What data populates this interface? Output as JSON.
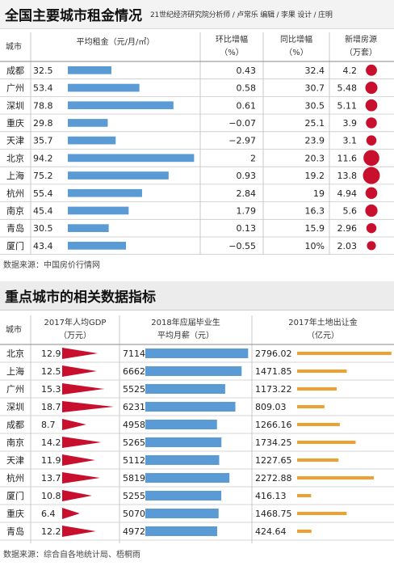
{
  "top": {
    "title": "全国主要城市租金情况",
    "credits": "21世纪经济研究院分析师 / 卢常乐  编辑 / 李果  设计 / 庄明",
    "source": "数据来源：中国房价行情网"
  },
  "bottom": {
    "title": "重点城市的相关数据指标",
    "source": "数据来源：综合自各地统计局、梧桐雨"
  },
  "colors": {
    "bar_blue": "#5b9bd5",
    "dot_red": "#c8102e",
    "tri_red": "#c8102e",
    "bar_orange": "#f0a030",
    "grid": "#c8c8c8"
  },
  "chart_data": [
    {
      "type": "table",
      "title": "全国主要城市租金情况",
      "headers": {
        "city": "城市",
        "rent": "平均租金（元/月/㎡）",
        "mom_line1": "环比增幅",
        "mom_line2": "（%）",
        "yoy_line1": "同比增幅",
        "yoy_line2": "（%）",
        "supply_line1": "新增房源",
        "supply_line2": "（万套）"
      },
      "rent_max": 100,
      "rows": [
        {
          "city": "成都",
          "rent": "32.5",
          "mom": "0.43",
          "yoy": "32.4",
          "supply": "4.2"
        },
        {
          "city": "广州",
          "rent": "53.4",
          "mom": "0.58",
          "yoy": "30.7",
          "supply": "5.48"
        },
        {
          "city": "深圳",
          "rent": "78.8",
          "mom": "0.61",
          "yoy": "30.5",
          "supply": "5.11"
        },
        {
          "city": "重庆",
          "rent": "29.8",
          "mom": "−0.07",
          "yoy": "25.1",
          "supply": "3.9"
        },
        {
          "city": "天津",
          "rent": "35.7",
          "mom": "−2.97",
          "yoy": "23.9",
          "supply": "3.1"
        },
        {
          "city": "北京",
          "rent": "94.2",
          "mom": "2",
          "yoy": "20.3",
          "supply": "11.6"
        },
        {
          "city": "上海",
          "rent": "75.2",
          "mom": "0.93",
          "yoy": "19.2",
          "supply": "13.8"
        },
        {
          "city": "杭州",
          "rent": "55.4",
          "mom": "2.84",
          "yoy": "19",
          "supply": "4.94"
        },
        {
          "city": "南京",
          "rent": "45.4",
          "mom": "1.79",
          "yoy": "16.3",
          "supply": "5.6"
        },
        {
          "city": "青岛",
          "rent": "30.5",
          "mom": "0.13",
          "yoy": "15.9",
          "supply": "2.96"
        },
        {
          "city": "厦门",
          "rent": "43.4",
          "mom": "−0.55",
          "yoy": "10%",
          "supply": "2.03"
        }
      ]
    },
    {
      "type": "table",
      "title": "重点城市的相关数据指标",
      "headers": {
        "city": "城市",
        "gdp_line1": "2017年人均GDP",
        "gdp_line2": "（万元）",
        "salary_line1": "2018年应届毕业生",
        "salary_line2": "平均月薪（元）",
        "land_line1": "2017年土地出让金",
        "land_line2": "（亿元）"
      },
      "gdp_max": 19,
      "salary_max": 7150,
      "land_max": 2800,
      "rows": [
        {
          "city": "北京",
          "gdp": "12.9",
          "salary": "7114",
          "land": "2796.02"
        },
        {
          "city": "上海",
          "gdp": "12.5",
          "salary": "6662",
          "land": "1471.85"
        },
        {
          "city": "广州",
          "gdp": "15.3",
          "salary": "5525",
          "land": "1173.22"
        },
        {
          "city": "深圳",
          "gdp": "18.7",
          "salary": "6231",
          "land": "809.03"
        },
        {
          "city": "成都",
          "gdp": "8.7",
          "salary": "4958",
          "land": "1266.16"
        },
        {
          "city": "南京",
          "gdp": "14.2",
          "salary": "5265",
          "land": "1734.25"
        },
        {
          "city": "天津",
          "gdp": "11.9",
          "salary": "5112",
          "land": "1227.65"
        },
        {
          "city": "杭州",
          "gdp": "13.7",
          "salary": "5819",
          "land": "2272.88"
        },
        {
          "city": "厦门",
          "gdp": "10.8",
          "salary": "5255",
          "land": "416.13"
        },
        {
          "city": "重庆",
          "gdp": "6.4",
          "salary": "5070",
          "land": "1468.75"
        },
        {
          "city": "青岛",
          "gdp": "12.2",
          "salary": "4972",
          "land": "424.64"
        }
      ]
    }
  ]
}
